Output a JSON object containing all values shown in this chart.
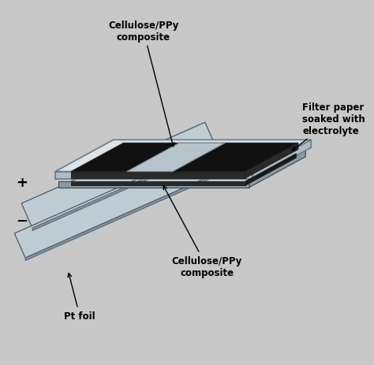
{
  "bg_color": "#c8c8c8",
  "fig_bg": "#c8c8c8",
  "colors": {
    "plate_top": "#dce4e8",
    "plate_side": "#b0bcc4",
    "plate_edge": "#6a7a84",
    "black_elec": "#111111",
    "black_side": "#2a2a2a",
    "gray_strip": "#b8c4cc",
    "gray_strip_side": "#8a9aA4",
    "pt_foil_top": "#c0ccd4",
    "pt_foil_side": "#8090a0",
    "pt_foil_edge": "#505a64"
  },
  "labels": {
    "top_composite": "Cellulose/PPy\ncomposite",
    "filter_paper": "Filter paper\nsoaked with\nelectrolyte",
    "bottom_composite": "Cellulose/PPy\ncomposite",
    "pt_foil": "Pt foil",
    "plus": "+",
    "minus": "−"
  }
}
